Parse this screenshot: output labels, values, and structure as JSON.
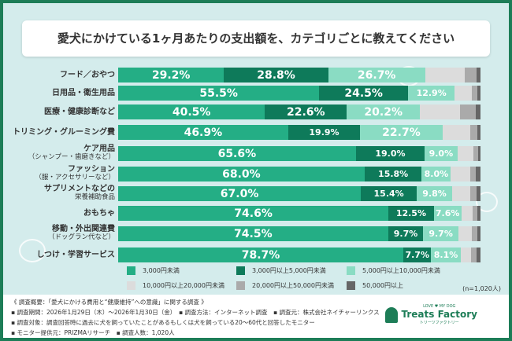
{
  "title": "愛犬にかけている1ヶ月あたりの支出額を、カテゴリごとに教えてください",
  "chart_data": {
    "type": "bar",
    "orientation": "horizontal",
    "stacked": true,
    "unit": "%",
    "categories": [
      {
        "label": "フード／おやつ",
        "sub": ""
      },
      {
        "label": "日用品・衛生用品",
        "sub": ""
      },
      {
        "label": "医療・健康診断など",
        "sub": ""
      },
      {
        "label": "トリミング・グルーミング費",
        "sub": ""
      },
      {
        "label": "ケア用品",
        "sub": "（シャンプー・歯磨きなど）"
      },
      {
        "label": "ファッション",
        "sub": "（服・アクセサリーなど）"
      },
      {
        "label": "サプリメントなどの",
        "sub": "栄養補助食品"
      },
      {
        "label": "おもちゃ",
        "sub": ""
      },
      {
        "label": "移動・外出関連費",
        "sub": "（ドッグラン代など）"
      },
      {
        "label": "しつけ・学習サービス",
        "sub": ""
      }
    ],
    "series": [
      {
        "name": "3,000円未満",
        "color": "#24ae85",
        "values": [
          29.2,
          55.5,
          40.5,
          46.9,
          65.6,
          68.0,
          67.0,
          74.6,
          74.5,
          78.7
        ],
        "labeled": true
      },
      {
        "name": "3,000円以上5,000円未満",
        "color": "#0e7a5a",
        "values": [
          28.8,
          24.5,
          22.6,
          19.9,
          19.0,
          15.8,
          15.4,
          12.5,
          9.7,
          7.7
        ],
        "labeled": true
      },
      {
        "name": "5,000円以上10,000円未満",
        "color": "#8adcc3",
        "values": [
          26.7,
          12.9,
          20.2,
          22.7,
          9.0,
          8.0,
          9.8,
          7.6,
          9.7,
          8.1
        ],
        "labeled": true
      },
      {
        "name": "10,000円以上20,000円未満",
        "color": "#dcdcdc",
        "values": [
          10.9,
          4.7,
          11.0,
          7.6,
          4.4,
          5.3,
          5.0,
          3.1,
          3.7,
          3.0
        ],
        "labeled": false
      },
      {
        "name": "20,000円以上50,000円未満",
        "color": "#aaaaaa",
        "values": [
          3.3,
          1.6,
          4.5,
          2.1,
          1.4,
          1.7,
          1.8,
          1.3,
          1.5,
          1.5
        ],
        "labeled": false
      },
      {
        "name": "50,000円以上",
        "color": "#666666",
        "values": [
          1.1,
          0.8,
          1.2,
          0.8,
          0.6,
          1.2,
          1.0,
          0.9,
          0.9,
          1.0
        ],
        "labeled": false
      }
    ],
    "xlim": [
      0,
      100
    ],
    "legend": "bottom",
    "note": "(n=1,020人)"
  },
  "footer": {
    "lines": [
      "《 調査概要：「愛犬にかける費用と“健康維持”への意識」に関する調査 》",
      "▪ 調査期間：2026年1月29日（木）～2026年1月30日（金）　▪ 調査方法：インターネット調査　▪ 調査元：株式会社ネイチャーリンクス",
      "▪ 調査対象：調査回答時に過去に犬を飼っていたことがあるもしくは犬を飼っている20～60代と回答したモニター",
      "▪ モニター提供元：PRIZMAリサーチ　▪ 調査人数：1,020人"
    ],
    "logo": {
      "tagline": "LOVE ♥ MY DOG",
      "name": "Treats Factory",
      "sub": "トリーツファクトリー"
    }
  }
}
